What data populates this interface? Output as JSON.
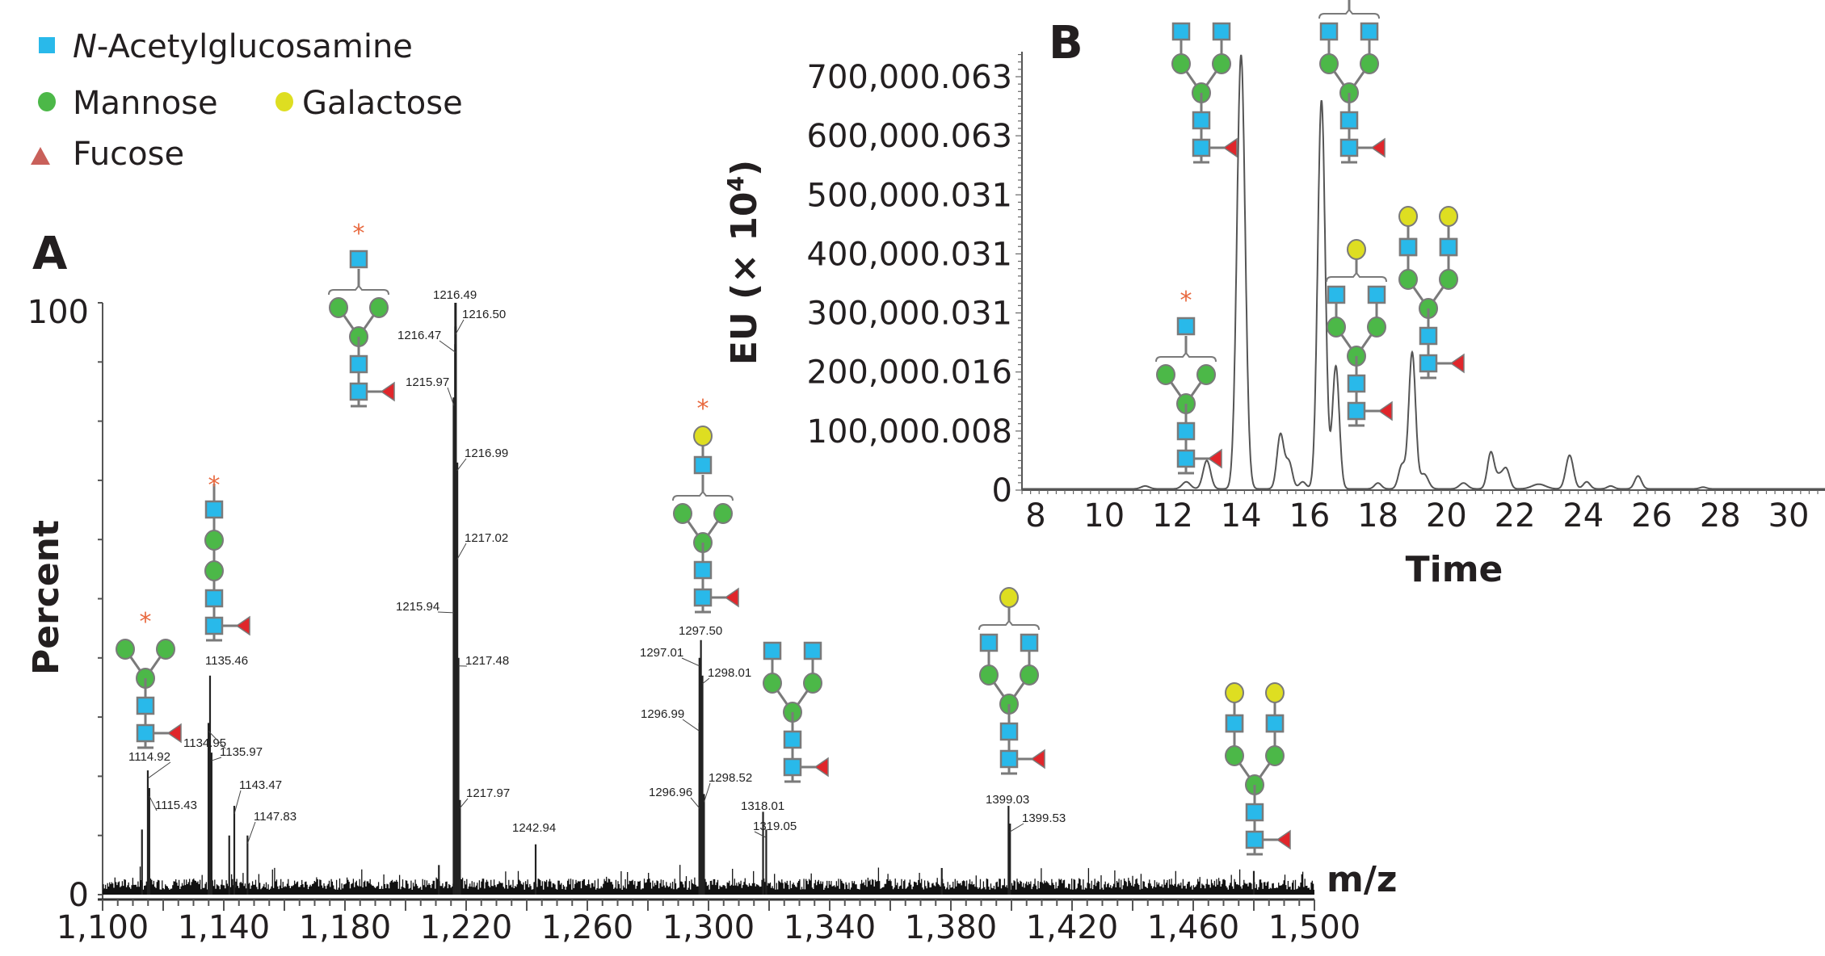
{
  "legend": {
    "items": [
      {
        "shape": "square",
        "color": "#29b9ea",
        "label_prefix": "N",
        "label": "-Acetylglucosamine"
      },
      {
        "shape": "circle",
        "color": "#4cb848",
        "label": "Mannose"
      },
      {
        "shape": "circle",
        "color": "#dede21",
        "label": "Galactose"
      },
      {
        "shape": "triangle",
        "color": "#c9605a",
        "label": "Fucose"
      }
    ]
  },
  "colors": {
    "glcnac": "#29b9ea",
    "mannose": "#4cb848",
    "galactose": "#dede21",
    "fucose": "#e0262b",
    "link": "#7a7a7a",
    "star": "#e8693f",
    "spectrum": "#111111",
    "chromatogram": "#555555"
  },
  "chart_data": [
    {
      "panel": "A",
      "type": "bar",
      "title": "A",
      "xlabel": "m/z",
      "ylabel": "Percent",
      "xlim": [
        1100,
        1500
      ],
      "ylim": [
        0,
        100
      ],
      "x_ticks": [
        1100,
        1140,
        1180,
        1220,
        1260,
        1300,
        1340,
        1380,
        1420,
        1460,
        1500
      ],
      "x_tick_labels": [
        "1,100",
        "1,140",
        "1,180",
        "1,220",
        "1,260",
        "1,300",
        "1,340",
        "1,380",
        "1,420",
        "1,460",
        "1,500"
      ],
      "y_tick_labels": [
        "0",
        "100"
      ],
      "peaks": [
        {
          "mz": 1113.0,
          "pct": 11
        },
        {
          "mz": 1114.92,
          "pct": 21,
          "label": "1114.92"
        },
        {
          "mz": 1115.43,
          "pct": 18,
          "label": "1115.43"
        },
        {
          "mz": 1134.95,
          "pct": 29,
          "label": "1134.95"
        },
        {
          "mz": 1135.46,
          "pct": 37,
          "label": "1135.46"
        },
        {
          "mz": 1135.97,
          "pct": 24,
          "label": "1135.97"
        },
        {
          "mz": 1141.8,
          "pct": 10
        },
        {
          "mz": 1143.47,
          "pct": 15,
          "label": "1143.47"
        },
        {
          "mz": 1147.83,
          "pct": 10,
          "label": "1147.83"
        },
        {
          "mz": 1211.0,
          "pct": 5
        },
        {
          "mz": 1215.94,
          "pct": 49,
          "label": "1215.94"
        },
        {
          "mz": 1215.97,
          "pct": 84,
          "label": "1215.97"
        },
        {
          "mz": 1216.47,
          "pct": 93,
          "label": "1216.47"
        },
        {
          "mz": 1216.49,
          "pct": 100,
          "label": "1216.49"
        },
        {
          "mz": 1216.5,
          "pct": 96,
          "label": "1216.50"
        },
        {
          "mz": 1216.99,
          "pct": 73,
          "label": "1216.99"
        },
        {
          "mz": 1217.02,
          "pct": 58,
          "label": "1217.02"
        },
        {
          "mz": 1217.48,
          "pct": 40,
          "label": "1217.48"
        },
        {
          "mz": 1217.97,
          "pct": 16,
          "label": "1217.97"
        },
        {
          "mz": 1242.94,
          "pct": 8.5,
          "label": "1242.94"
        },
        {
          "mz": 1296.96,
          "pct": 16,
          "label": "1296.96"
        },
        {
          "mz": 1296.99,
          "pct": 29,
          "label": "1296.99"
        },
        {
          "mz": 1297.01,
          "pct": 40,
          "label": "1297.01"
        },
        {
          "mz": 1297.5,
          "pct": 43,
          "label": "1297.50"
        },
        {
          "mz": 1298.01,
          "pct": 37,
          "label": "1298.01"
        },
        {
          "mz": 1298.52,
          "pct": 17,
          "label": "1298.52"
        },
        {
          "mz": 1318.01,
          "pct": 14,
          "label": "1318.01"
        },
        {
          "mz": 1319.05,
          "pct": 11,
          "label": "1319.05"
        },
        {
          "mz": 1377.0,
          "pct": 4.5
        },
        {
          "mz": 1399.03,
          "pct": 15,
          "label": "1399.03"
        },
        {
          "mz": 1399.53,
          "pct": 12,
          "label": "1399.53"
        },
        {
          "mz": 1480.0,
          "pct": 4
        }
      ],
      "glycan_annotations": [
        {
          "mz": 1114.92,
          "structure": "M3-core-fucosylated (Man3GlcNAc2Fuc)",
          "starred": true
        },
        {
          "mz": 1135.46,
          "structure": "linear GlcNAc-Man-Man-GlcNAc-GlcNAc(Fuc)",
          "starred": true
        },
        {
          "mz": 1216.49,
          "structure": "GlcNAc1 Man3 GlcNAc2 Fuc (G0F-N)",
          "starred": true
        },
        {
          "mz": 1297.5,
          "structure": "Gal1 GlcNAc1 Man3 GlcNAc2 Fuc",
          "starred": true
        },
        {
          "mz": 1318.01,
          "structure": "G0F",
          "starred": false
        },
        {
          "mz": 1399.03,
          "structure": "G1F",
          "starred": false
        },
        {
          "mz": 1480.0,
          "structure": "G2F",
          "starred": false
        }
      ]
    },
    {
      "panel": "B",
      "type": "line",
      "title": "B",
      "xlabel": "Time",
      "ylabel": "EU (× 10⁴)",
      "ylabel_parts": {
        "main": "EU (× 10",
        "sup": "4",
        "end": ")"
      },
      "xlim": [
        8,
        31
      ],
      "ylim": [
        0,
        740000
      ],
      "x_ticks": [
        8,
        10,
        12,
        14,
        16,
        18,
        20,
        22,
        24,
        26,
        28,
        30
      ],
      "x_tick_labels": [
        "8",
        "10",
        "12",
        "14",
        "16",
        "18",
        "20",
        "22",
        "24",
        "26",
        "28",
        "30"
      ],
      "y_ticks": [
        0,
        100000,
        200000,
        300000,
        400000,
        500000,
        600000,
        700000
      ],
      "y_tick_labels": [
        "0",
        "100,000.008",
        "200,000.016",
        "300,000.031",
        "400,000.031",
        "500,000.031",
        "600,000.063",
        "700,000.063"
      ],
      "peaks": [
        {
          "t": 11.2,
          "value": 5000,
          "width": 0.12
        },
        {
          "t": 12.4,
          "value": 12000,
          "width": 0.12
        },
        {
          "t": 13.0,
          "value": 48000,
          "width": 0.11
        },
        {
          "t": 14.0,
          "value": 735000,
          "width": 0.12
        },
        {
          "t": 15.15,
          "value": 92000,
          "width": 0.1
        },
        {
          "t": 15.4,
          "value": 45000,
          "width": 0.1
        },
        {
          "t": 15.8,
          "value": 12000,
          "width": 0.1
        },
        {
          "t": 16.35,
          "value": 658000,
          "width": 0.11
        },
        {
          "t": 16.77,
          "value": 208000,
          "width": 0.1
        },
        {
          "t": 18.0,
          "value": 10000,
          "width": 0.1
        },
        {
          "t": 18.7,
          "value": 40000,
          "width": 0.1
        },
        {
          "t": 19.0,
          "value": 231000,
          "width": 0.1
        },
        {
          "t": 19.35,
          "value": 25000,
          "width": 0.12
        },
        {
          "t": 20.5,
          "value": 10000,
          "width": 0.12
        },
        {
          "t": 21.3,
          "value": 62000,
          "width": 0.1
        },
        {
          "t": 21.55,
          "value": 20000,
          "width": 0.1
        },
        {
          "t": 21.75,
          "value": 33000,
          "width": 0.1
        },
        {
          "t": 22.7,
          "value": 8000,
          "width": 0.2
        },
        {
          "t": 23.6,
          "value": 57000,
          "width": 0.11
        },
        {
          "t": 24.1,
          "value": 12000,
          "width": 0.1
        },
        {
          "t": 24.8,
          "value": 5000,
          "width": 0.1
        },
        {
          "t": 25.6,
          "value": 22000,
          "width": 0.1
        },
        {
          "t": 27.5,
          "value": 3000,
          "width": 0.1
        }
      ],
      "glycan_annotations": [
        {
          "t": 12.4,
          "structure": "GlcNAc1 Man3 GlcNAc2 Fuc",
          "starred": true
        },
        {
          "t": 14.0,
          "structure": "G0F",
          "starred": false
        },
        {
          "t": 16.35,
          "structure": "G1F (isomer 1)",
          "starred": false
        },
        {
          "t": 16.77,
          "structure": "G1F (isomer 2)",
          "starred": false
        },
        {
          "t": 19.0,
          "structure": "G2F",
          "starred": false
        }
      ]
    }
  ],
  "star_glyph": "*"
}
